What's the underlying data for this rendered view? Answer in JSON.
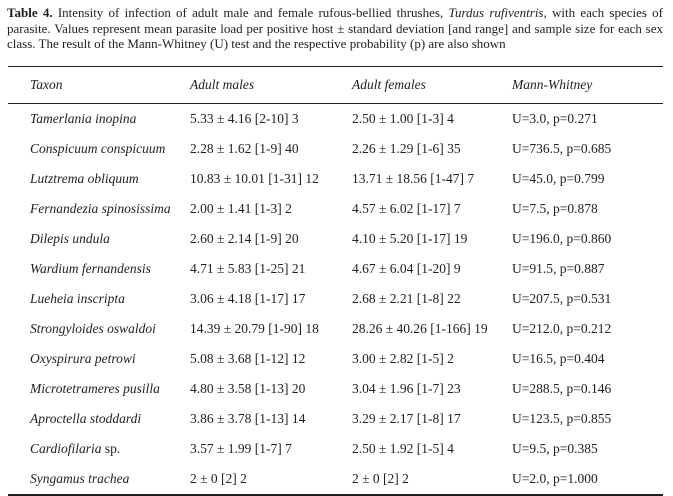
{
  "caption": {
    "label": "Table 4.",
    "before_species": " Intensity of infection of adult male and female rufous-bellied thrushes, ",
    "species": "Turdus rufiventris",
    "after_species": ", with each species of parasite. Values represent mean parasite load per positive host ± standard deviation [and range] and sample size for each sex class. The result of the Mann-Whitney (U) test and the respective probability (p) are also shown"
  },
  "table": {
    "headers": [
      "Taxon",
      "Adult males",
      "Adult females",
      "Mann-Whitney"
    ],
    "rows": [
      {
        "taxon": "Tamerlania inopina",
        "taxon_suffix": "",
        "adult_males": "5.33 ± 4.16 [2-10] 3",
        "adult_females": "2.50 ± 1.00 [1-3] 4",
        "mann_whitney": "U=3.0, p=0.271"
      },
      {
        "taxon": "Conspicuum conspicuum",
        "taxon_suffix": "",
        "adult_males": "2.28 ± 1.62 [1-9] 40",
        "adult_females": "2.26 ± 1.29 [1-6] 35",
        "mann_whitney": "U=736.5, p=0.685"
      },
      {
        "taxon": "Lutztrema obliquum",
        "taxon_suffix": "",
        "adult_males": "10.83 ± 10.01 [1-31] 12",
        "adult_females": "13.71 ± 18.56 [1-47] 7",
        "mann_whitney": "U=45.0, p=0.799"
      },
      {
        "taxon": "Fernandezia spinosissima",
        "taxon_suffix": "",
        "adult_males": "2.00 ± 1.41 [1-3] 2",
        "adult_females": "4.57 ± 6.02 [1-17] 7",
        "mann_whitney": "U=7.5, p=0.878"
      },
      {
        "taxon": "Dilepis undula",
        "taxon_suffix": "",
        "adult_males": "2.60 ± 2.14 [1-9] 20",
        "adult_females": "4.10 ± 5.20 [1-17] 19",
        "mann_whitney": "U=196.0, p=0.860"
      },
      {
        "taxon": "Wardium fernandensis",
        "taxon_suffix": "",
        "adult_males": "4.71 ± 5.83 [1-25] 21",
        "adult_females": "4.67 ± 6.04 [1-20] 9",
        "mann_whitney": "U=91.5, p=0.887"
      },
      {
        "taxon": "Lueheia inscripta",
        "taxon_suffix": "",
        "adult_males": "3.06 ± 4.18 [1-17] 17",
        "adult_females": "2.68 ± 2.21 [1-8] 22",
        "mann_whitney": "U=207.5, p=0.531"
      },
      {
        "taxon": "Strongyloides oswaldoi",
        "taxon_suffix": "",
        "adult_males": "14.39 ± 20.79 [1-90] 18",
        "adult_females": "28.26 ± 40.26 [1-166] 19",
        "mann_whitney": "U=212.0, p=0.212"
      },
      {
        "taxon": "Oxyspirura petrowi",
        "taxon_suffix": "",
        "adult_males": "5.08 ± 3.68 [1-12] 12",
        "adult_females": "3.00 ± 2.82 [1-5] 2",
        "mann_whitney": "U=16.5, p=0.404"
      },
      {
        "taxon": "Microtetrameres pusilla",
        "taxon_suffix": "",
        "adult_males": "4.80 ± 3.58 [1-13] 20",
        "adult_females": "3.04 ± 1.96 [1-7] 23",
        "mann_whitney": "U=288.5, p=0.146"
      },
      {
        "taxon": "Aproctella stoddardi",
        "taxon_suffix": "",
        "adult_males": "3.86 ± 3.78 [1-13] 14",
        "adult_females": "3.29 ± 2.17 [1-8] 17",
        "mann_whitney": "U=123.5, p=0.855"
      },
      {
        "taxon": "Cardiofilaria",
        "taxon_suffix": " sp.",
        "adult_males": "3.57 ± 1.99 [1-7] 7",
        "adult_females": "2.50 ± 1.92 [1-5] 4",
        "mann_whitney": "U=9.5, p=0.385"
      },
      {
        "taxon": "Syngamus trachea",
        "taxon_suffix": "",
        "adult_males": "2 ± 0 [2] 2",
        "adult_females": "2 ± 0 [2] 2",
        "mann_whitney": "U=2.0, p=1.000"
      }
    ]
  },
  "colors": {
    "background": "#ffffff",
    "text": "#1f1f1f",
    "rule": "#1f1f1f"
  }
}
